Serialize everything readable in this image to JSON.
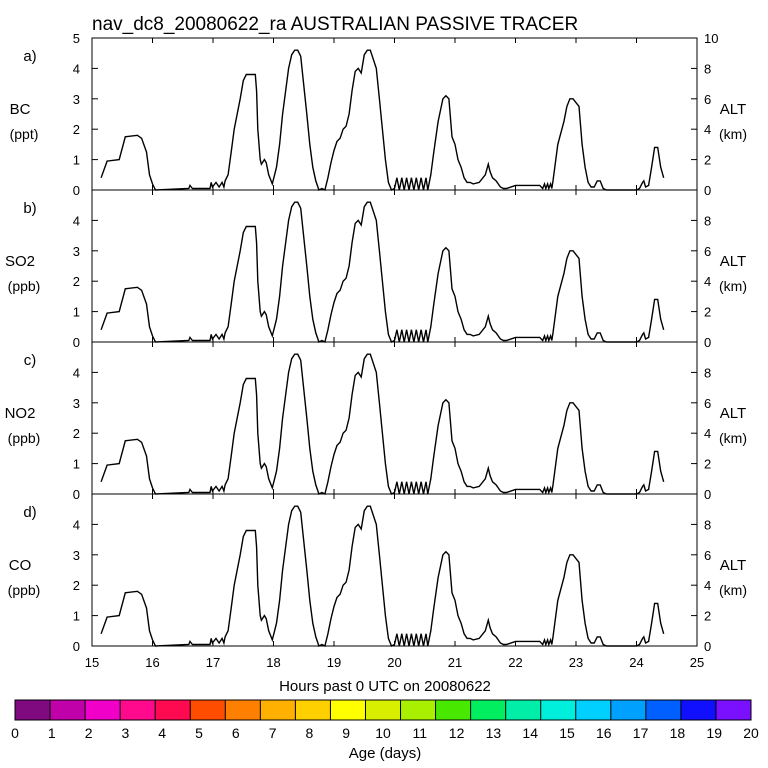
{
  "title": "nav_dc8_20080622_ra AUSTRALIAN PASSIVE TRACER",
  "xlabel": "Hours past 0 UTC on 20080622",
  "colorbar": {
    "label": "Age (days)",
    "ticks": [
      "0",
      "1",
      "2",
      "3",
      "4",
      "5",
      "6",
      "7",
      "8",
      "9",
      "10",
      "11",
      "12",
      "13",
      "14",
      "15",
      "16",
      "17",
      "18",
      "19",
      "20"
    ],
    "colors": [
      "#7f0a7f",
      "#c000a8",
      "#f000c8",
      "#ff0a8c",
      "#ff0a50",
      "#ff4d00",
      "#ff8000",
      "#ffb000",
      "#ffd000",
      "#ffff00",
      "#d8f000",
      "#a8f000",
      "#48e800",
      "#00ee60",
      "#00eea8",
      "#00eedc",
      "#00d0ff",
      "#00a0ff",
      "#0060ff",
      "#1010ff",
      "#7a10ff"
    ]
  },
  "chart_data": [
    {
      "type": "line",
      "panel_label": "a)",
      "ylabel": "BC",
      "yunit": "(ppt)",
      "ylim": [
        0,
        5
      ],
      "yticks": [
        "0",
        "1",
        "2",
        "3",
        "4",
        "5"
      ],
      "y2label": "ALT",
      "y2unit": "(km)",
      "y2lim": [
        0,
        10
      ],
      "y2ticks": [
        "0",
        "2",
        "4",
        "6",
        "8",
        "10"
      ],
      "xlim": [
        15,
        25
      ],
      "xticks": [
        "15",
        "16",
        "17",
        "18",
        "19",
        "20",
        "21",
        "22",
        "23",
        "24",
        "25"
      ],
      "series": [
        {
          "name": "ALT (km)",
          "axis": "right"
        }
      ]
    },
    {
      "type": "line",
      "panel_label": "b)",
      "ylabel": "SO2",
      "yunit": "(ppb)",
      "ylim": [
        0,
        5
      ],
      "yticks": [
        "0",
        "1",
        "2",
        "3",
        "4"
      ],
      "y2label": "ALT",
      "y2unit": "(km)",
      "y2lim": [
        0,
        10
      ],
      "y2ticks": [
        "0",
        "2",
        "4",
        "6",
        "8"
      ],
      "xlim": [
        15,
        25
      ],
      "xticks": [],
      "series": [
        {
          "name": "ALT (km)",
          "axis": "right"
        }
      ]
    },
    {
      "type": "line",
      "panel_label": "c)",
      "ylabel": "NO2",
      "yunit": "(ppb)",
      "ylim": [
        0,
        5
      ],
      "yticks": [
        "0",
        "1",
        "2",
        "3",
        "4"
      ],
      "y2label": "ALT",
      "y2unit": "(km)",
      "y2lim": [
        0,
        10
      ],
      "y2ticks": [
        "0",
        "2",
        "4",
        "6",
        "8"
      ],
      "xlim": [
        15,
        25
      ],
      "xticks": [],
      "series": [
        {
          "name": "ALT (km)",
          "axis": "right"
        }
      ]
    },
    {
      "type": "line",
      "panel_label": "d)",
      "ylabel": "CO",
      "yunit": "(ppb)",
      "ylim": [
        0,
        5
      ],
      "yticks": [
        "0",
        "1",
        "2",
        "3",
        "4"
      ],
      "y2label": "ALT",
      "y2unit": "(km)",
      "y2lim": [
        0,
        10
      ],
      "y2ticks": [
        "0",
        "2",
        "4",
        "6",
        "8"
      ],
      "xlim": [
        15,
        25
      ],
      "xticks": [
        "15",
        "16",
        "17",
        "18",
        "19",
        "20",
        "21",
        "22",
        "23",
        "24",
        "25"
      ],
      "series": [
        {
          "name": "ALT (km)",
          "axis": "right"
        }
      ]
    }
  ],
  "altitude_profile": {
    "x": [
      15.15,
      15.25,
      15.45,
      15.55,
      15.75,
      15.82,
      15.9,
      15.95,
      16.0,
      16.05,
      16.6,
      16.62,
      16.64,
      16.66,
      16.95,
      16.97,
      16.99,
      17.05,
      17.1,
      17.15,
      17.18,
      17.2,
      17.25,
      17.3,
      17.35,
      17.45,
      17.5,
      17.55,
      17.6,
      17.65,
      17.7,
      17.72,
      17.74,
      17.78,
      17.8,
      17.85,
      17.88,
      17.92,
      17.98,
      18.05,
      18.1,
      18.15,
      18.2,
      18.25,
      18.3,
      18.35,
      18.4,
      18.45,
      18.55,
      18.6,
      18.65,
      18.7,
      18.75,
      18.8,
      18.85,
      18.9,
      18.95,
      19.0,
      19.05,
      19.1,
      19.15,
      19.2,
      19.25,
      19.3,
      19.35,
      19.4,
      19.45,
      19.5,
      19.55,
      19.6,
      19.7,
      19.75,
      19.8,
      19.85,
      19.9,
      19.95,
      20.0,
      20.04,
      20.08,
      20.12,
      20.16,
      20.2,
      20.24,
      20.28,
      20.32,
      20.36,
      20.4,
      20.44,
      20.48,
      20.52,
      20.55,
      20.6,
      20.65,
      20.72,
      20.8,
      20.85,
      20.9,
      20.95,
      21.0,
      21.05,
      21.1,
      21.15,
      21.2,
      21.25,
      21.3,
      21.4,
      21.5,
      21.55,
      21.58,
      21.62,
      21.68,
      21.75,
      21.8,
      21.85,
      22.0,
      22.2,
      22.4,
      22.45,
      22.48,
      22.5,
      22.53,
      22.55,
      22.58,
      22.6,
      22.62,
      22.65,
      22.7,
      22.8,
      22.85,
      22.9,
      22.95,
      23.05,
      23.1,
      23.15,
      23.2,
      23.25,
      23.3,
      23.35,
      23.4,
      23.45,
      23.5,
      24.0,
      24.05,
      24.1,
      24.12,
      24.15,
      24.2,
      24.25,
      24.3,
      24.35,
      24.4,
      24.45,
      24.48
    ],
    "alt_km": [
      0.8,
      1.9,
      2.0,
      3.5,
      3.6,
      3.4,
      2.5,
      1.0,
      0.4,
      0.0,
      0.1,
      0.3,
      0.2,
      0.1,
      0.1,
      0.5,
      0.2,
      0.5,
      0.2,
      0.5,
      0.2,
      0.6,
      1.0,
      2.5,
      4.0,
      6.0,
      7.2,
      7.6,
      7.6,
      7.6,
      7.6,
      6.5,
      4.0,
      2.0,
      1.7,
      2.0,
      1.8,
      1.0,
      0.4,
      1.5,
      3.0,
      5.0,
      6.5,
      8.0,
      8.9,
      9.2,
      9.2,
      8.8,
      5.0,
      3.0,
      1.5,
      0.6,
      0.0,
      0.1,
      0.0,
      0.8,
      1.8,
      2.6,
      3.2,
      3.4,
      4.0,
      4.2,
      5.0,
      6.6,
      7.8,
      8.0,
      7.7,
      8.9,
      9.2,
      9.2,
      8.0,
      6.0,
      4.0,
      2.0,
      0.5,
      0.0,
      0.1,
      0.8,
      0.0,
      0.8,
      0.0,
      0.8,
      0.0,
      0.8,
      0.0,
      0.8,
      0.0,
      0.8,
      0.0,
      0.8,
      0.0,
      1.0,
      2.5,
      4.5,
      6.0,
      6.2,
      6.0,
      3.5,
      3.0,
      2.0,
      1.5,
      0.8,
      0.5,
      0.5,
      0.4,
      0.5,
      1.0,
      1.7,
      1.2,
      0.8,
      0.6,
      0.2,
      0.1,
      0.1,
      0.3,
      0.3,
      0.3,
      0.1,
      0.4,
      0.1,
      0.4,
      0.1,
      0.4,
      0.1,
      0.6,
      1.5,
      3.0,
      4.5,
      5.5,
      6.0,
      6.0,
      5.5,
      3.0,
      1.5,
      0.5,
      0.2,
      0.2,
      0.6,
      0.6,
      0.1,
      0.0,
      0.0,
      0.1,
      0.5,
      0.6,
      0.2,
      0.3,
      1.5,
      2.8,
      2.8,
      1.5,
      0.8
    ]
  }
}
